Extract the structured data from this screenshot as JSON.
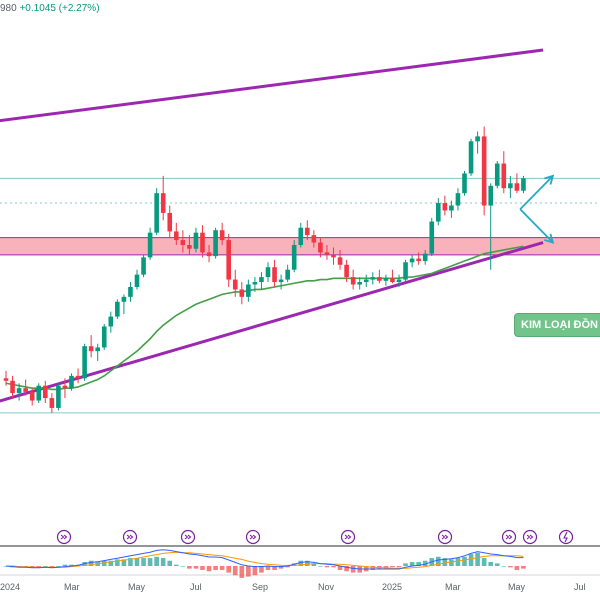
{
  "header": {
    "price_fragment": "980",
    "change": "+0.1045 (+2.27%)"
  },
  "annotation_label": "KIM LOẠI ĐỒN",
  "x_axis_labels": [
    "2024",
    "Mar",
    "May",
    "Jul",
    "Sep",
    "Nov",
    "2025",
    "Mar",
    "May",
    "Jul"
  ],
  "event_icons": [
    "ex-dividend-icon",
    "ex-dividend-icon",
    "ex-dividend-icon",
    "ex-dividend-icon",
    "ex-dividend-icon",
    "ex-dividend-icon",
    "ex-dividend-icon",
    "ex-dividend-icon",
    "flash-icon",
    "ex-dividend-icon"
  ],
  "colors": {
    "up": "#089981",
    "down": "#f23645",
    "channel": "#9c27b0",
    "support_zone": "#f8a5ad",
    "moving_average": "#43a047",
    "projection": "#26a9c9",
    "horizontal_levels": "#80cbc4",
    "macd_line": "#2962ff",
    "signal_line": "#ff9800"
  },
  "chart_data": {
    "type": "candlestick",
    "title": "",
    "xlabel": "",
    "ylabel": "",
    "candles": [
      {
        "o": 0.78,
        "h": 0.84,
        "l": 0.72,
        "c": 0.76
      },
      {
        "o": 0.76,
        "h": 0.8,
        "l": 0.62,
        "c": 0.66
      },
      {
        "o": 0.66,
        "h": 0.74,
        "l": 0.6,
        "c": 0.7
      },
      {
        "o": 0.7,
        "h": 0.77,
        "l": 0.64,
        "c": 0.67
      },
      {
        "o": 0.67,
        "h": 0.7,
        "l": 0.56,
        "c": 0.6
      },
      {
        "o": 0.6,
        "h": 0.74,
        "l": 0.58,
        "c": 0.72
      },
      {
        "o": 0.72,
        "h": 0.76,
        "l": 0.58,
        "c": 0.62
      },
      {
        "o": 0.62,
        "h": 0.66,
        "l": 0.5,
        "c": 0.54
      },
      {
        "o": 0.54,
        "h": 0.74,
        "l": 0.52,
        "c": 0.72
      },
      {
        "o": 0.72,
        "h": 0.78,
        "l": 0.62,
        "c": 0.7
      },
      {
        "o": 0.7,
        "h": 0.82,
        "l": 0.68,
        "c": 0.8
      },
      {
        "o": 0.8,
        "h": 0.86,
        "l": 0.74,
        "c": 0.78
      },
      {
        "o": 0.78,
        "h": 1.06,
        "l": 0.76,
        "c": 1.04
      },
      {
        "o": 1.04,
        "h": 1.13,
        "l": 0.95,
        "c": 1.0
      },
      {
        "o": 1.0,
        "h": 1.06,
        "l": 0.92,
        "c": 1.03
      },
      {
        "o": 1.03,
        "h": 1.22,
        "l": 1.01,
        "c": 1.2
      },
      {
        "o": 1.2,
        "h": 1.32,
        "l": 1.15,
        "c": 1.28
      },
      {
        "o": 1.28,
        "h": 1.42,
        "l": 1.26,
        "c": 1.4
      },
      {
        "o": 1.4,
        "h": 1.46,
        "l": 1.3,
        "c": 1.44
      },
      {
        "o": 1.44,
        "h": 1.56,
        "l": 1.4,
        "c": 1.52
      },
      {
        "o": 1.52,
        "h": 1.66,
        "l": 1.5,
        "c": 1.62
      },
      {
        "o": 1.62,
        "h": 1.78,
        "l": 1.6,
        "c": 1.76
      },
      {
        "o": 1.76,
        "h": 2.0,
        "l": 1.74,
        "c": 1.96
      },
      {
        "o": 1.96,
        "h": 2.32,
        "l": 1.94,
        "c": 2.28
      },
      {
        "o": 2.28,
        "h": 2.42,
        "l": 2.06,
        "c": 2.12
      },
      {
        "o": 2.12,
        "h": 2.18,
        "l": 1.92,
        "c": 1.97
      },
      {
        "o": 1.97,
        "h": 2.04,
        "l": 1.86,
        "c": 1.9
      },
      {
        "o": 1.9,
        "h": 1.98,
        "l": 1.8,
        "c": 1.86
      },
      {
        "o": 1.86,
        "h": 1.94,
        "l": 1.78,
        "c": 1.83
      },
      {
        "o": 1.83,
        "h": 2.0,
        "l": 1.8,
        "c": 1.96
      },
      {
        "o": 1.96,
        "h": 2.02,
        "l": 1.76,
        "c": 1.8
      },
      {
        "o": 1.8,
        "h": 1.86,
        "l": 1.72,
        "c": 1.77
      },
      {
        "o": 1.77,
        "h": 2.0,
        "l": 1.75,
        "c": 1.98
      },
      {
        "o": 1.98,
        "h": 2.04,
        "l": 1.86,
        "c": 1.9
      },
      {
        "o": 1.9,
        "h": 1.95,
        "l": 1.52,
        "c": 1.58
      },
      {
        "o": 1.58,
        "h": 1.66,
        "l": 1.44,
        "c": 1.5
      },
      {
        "o": 1.5,
        "h": 1.56,
        "l": 1.38,
        "c": 1.44
      },
      {
        "o": 1.44,
        "h": 1.58,
        "l": 1.4,
        "c": 1.54
      },
      {
        "o": 1.54,
        "h": 1.6,
        "l": 1.48,
        "c": 1.56
      },
      {
        "o": 1.56,
        "h": 1.64,
        "l": 1.5,
        "c": 1.6
      },
      {
        "o": 1.6,
        "h": 1.72,
        "l": 1.56,
        "c": 1.68
      },
      {
        "o": 1.68,
        "h": 1.74,
        "l": 1.52,
        "c": 1.56
      },
      {
        "o": 1.56,
        "h": 1.62,
        "l": 1.5,
        "c": 1.58
      },
      {
        "o": 1.58,
        "h": 1.7,
        "l": 1.56,
        "c": 1.66
      },
      {
        "o": 1.66,
        "h": 1.9,
        "l": 1.64,
        "c": 1.86
      },
      {
        "o": 1.86,
        "h": 2.04,
        "l": 1.84,
        "c": 2.0
      },
      {
        "o": 2.0,
        "h": 2.06,
        "l": 1.9,
        "c": 1.94
      },
      {
        "o": 1.94,
        "h": 1.98,
        "l": 1.84,
        "c": 1.88
      },
      {
        "o": 1.88,
        "h": 1.92,
        "l": 1.76,
        "c": 1.8
      },
      {
        "o": 1.8,
        "h": 1.86,
        "l": 1.74,
        "c": 1.78
      },
      {
        "o": 1.78,
        "h": 1.84,
        "l": 1.7,
        "c": 1.76
      },
      {
        "o": 1.76,
        "h": 1.82,
        "l": 1.66,
        "c": 1.7
      },
      {
        "o": 1.7,
        "h": 1.74,
        "l": 1.56,
        "c": 1.6
      },
      {
        "o": 1.6,
        "h": 1.66,
        "l": 1.5,
        "c": 1.54
      },
      {
        "o": 1.54,
        "h": 1.6,
        "l": 1.5,
        "c": 1.56
      },
      {
        "o": 1.56,
        "h": 1.62,
        "l": 1.52,
        "c": 1.58
      },
      {
        "o": 1.58,
        "h": 1.64,
        "l": 1.54,
        "c": 1.6
      },
      {
        "o": 1.6,
        "h": 1.66,
        "l": 1.55,
        "c": 1.57
      },
      {
        "o": 1.57,
        "h": 1.62,
        "l": 1.53,
        "c": 1.59
      },
      {
        "o": 1.59,
        "h": 1.66,
        "l": 1.55,
        "c": 1.56
      },
      {
        "o": 1.56,
        "h": 1.62,
        "l": 1.52,
        "c": 1.58
      },
      {
        "o": 1.58,
        "h": 1.74,
        "l": 1.56,
        "c": 1.72
      },
      {
        "o": 1.72,
        "h": 1.78,
        "l": 1.68,
        "c": 1.75
      },
      {
        "o": 1.75,
        "h": 1.8,
        "l": 1.7,
        "c": 1.73
      },
      {
        "o": 1.73,
        "h": 1.82,
        "l": 1.7,
        "c": 1.79
      },
      {
        "o": 1.79,
        "h": 2.08,
        "l": 1.77,
        "c": 2.05
      },
      {
        "o": 2.05,
        "h": 2.24,
        "l": 2.02,
        "c": 2.2
      },
      {
        "o": 2.2,
        "h": 2.26,
        "l": 2.1,
        "c": 2.14
      },
      {
        "o": 2.14,
        "h": 2.22,
        "l": 2.08,
        "c": 2.18
      },
      {
        "o": 2.18,
        "h": 2.32,
        "l": 2.14,
        "c": 2.28
      },
      {
        "o": 2.28,
        "h": 2.46,
        "l": 2.26,
        "c": 2.44
      },
      {
        "o": 2.44,
        "h": 2.72,
        "l": 2.42,
        "c": 2.7
      },
      {
        "o": 2.7,
        "h": 2.78,
        "l": 2.6,
        "c": 2.74
      },
      {
        "o": 2.74,
        "h": 2.82,
        "l": 2.1,
        "c": 2.18
      },
      {
        "o": 2.18,
        "h": 2.36,
        "l": 1.66,
        "c": 2.34
      },
      {
        "o": 2.34,
        "h": 2.54,
        "l": 2.32,
        "c": 2.52
      },
      {
        "o": 2.52,
        "h": 2.62,
        "l": 2.28,
        "c": 2.32
      },
      {
        "o": 2.32,
        "h": 2.42,
        "l": 2.24,
        "c": 2.36
      },
      {
        "o": 2.36,
        "h": 2.44,
        "l": 2.28,
        "c": 2.3
      },
      {
        "o": 2.3,
        "h": 2.42,
        "l": 2.28,
        "c": 2.4
      }
    ],
    "moving_average": [
      0.74,
      0.73,
      0.72,
      0.71,
      0.7,
      0.7,
      0.7,
      0.69,
      0.69,
      0.7,
      0.7,
      0.71,
      0.73,
      0.75,
      0.77,
      0.8,
      0.84,
      0.88,
      0.92,
      0.96,
      1.0,
      1.05,
      1.1,
      1.16,
      1.21,
      1.25,
      1.29,
      1.32,
      1.35,
      1.38,
      1.4,
      1.42,
      1.44,
      1.46,
      1.47,
      1.48,
      1.48,
      1.49,
      1.5,
      1.5,
      1.51,
      1.52,
      1.53,
      1.54,
      1.55,
      1.56,
      1.57,
      1.57,
      1.58,
      1.58,
      1.59,
      1.59,
      1.59,
      1.59,
      1.59,
      1.59,
      1.59,
      1.59,
      1.59,
      1.59,
      1.59,
      1.6,
      1.6,
      1.61,
      1.62,
      1.63,
      1.65,
      1.67,
      1.69,
      1.71,
      1.73,
      1.75,
      1.77,
      1.79,
      1.8,
      1.81,
      1.82,
      1.83,
      1.84,
      1.85
    ],
    "support_zone": [
      1.78,
      1.92
    ],
    "horizontal_levels": [
      2.4,
      2.2,
      0.5
    ],
    "channel": {
      "upper": {
        "from": [
          -2,
          2.86
        ],
        "to": [
          82,
          3.44
        ]
      },
      "lower": {
        "from": [
          -2,
          0.58
        ],
        "to": [
          82,
          1.88
        ]
      }
    },
    "projections": [
      {
        "from": [
          78.5,
          2.15
        ],
        "to": [
          83.5,
          2.42
        ],
        "direction": "up"
      },
      {
        "from": [
          78.5,
          2.15
        ],
        "to": [
          83.5,
          1.88
        ],
        "direction": "down"
      }
    ],
    "macd": {
      "macd_line": [
        0.0,
        -0.01,
        -0.02,
        -0.02,
        -0.03,
        -0.03,
        -0.02,
        -0.03,
        -0.02,
        -0.01,
        0.0,
        0.01,
        0.04,
        0.06,
        0.07,
        0.09,
        0.11,
        0.13,
        0.15,
        0.17,
        0.19,
        0.21,
        0.23,
        0.26,
        0.27,
        0.26,
        0.24,
        0.22,
        0.2,
        0.19,
        0.17,
        0.15,
        0.15,
        0.14,
        0.1,
        0.06,
        0.02,
        0.0,
        -0.01,
        -0.01,
        0.0,
        -0.01,
        -0.01,
        0.0,
        0.03,
        0.06,
        0.07,
        0.06,
        0.04,
        0.03,
        0.02,
        0.0,
        -0.02,
        -0.04,
        -0.05,
        -0.05,
        -0.05,
        -0.05,
        -0.05,
        -0.05,
        -0.05,
        -0.02,
        0.0,
        0.01,
        0.03,
        0.07,
        0.1,
        0.11,
        0.12,
        0.14,
        0.17,
        0.21,
        0.24,
        0.22,
        0.2,
        0.19,
        0.17,
        0.16,
        0.14,
        0.14
      ],
      "signal_line": [
        0.0,
        0.0,
        -0.01,
        -0.01,
        -0.02,
        -0.02,
        -0.02,
        -0.02,
        -0.02,
        -0.02,
        -0.01,
        0.0,
        0.01,
        0.02,
        0.04,
        0.05,
        0.07,
        0.08,
        0.1,
        0.11,
        0.13,
        0.15,
        0.17,
        0.19,
        0.21,
        0.22,
        0.23,
        0.22,
        0.22,
        0.21,
        0.2,
        0.19,
        0.18,
        0.17,
        0.15,
        0.13,
        0.11,
        0.08,
        0.06,
        0.04,
        0.03,
        0.02,
        0.01,
        0.01,
        0.01,
        0.02,
        0.03,
        0.04,
        0.04,
        0.04,
        0.03,
        0.03,
        0.02,
        0.01,
        0.0,
        -0.01,
        -0.02,
        -0.03,
        -0.03,
        -0.04,
        -0.04,
        -0.04,
        -0.03,
        -0.02,
        -0.01,
        0.01,
        0.03,
        0.05,
        0.07,
        0.08,
        0.1,
        0.12,
        0.14,
        0.16,
        0.17,
        0.17,
        0.17,
        0.17,
        0.17,
        0.16
      ]
    }
  }
}
